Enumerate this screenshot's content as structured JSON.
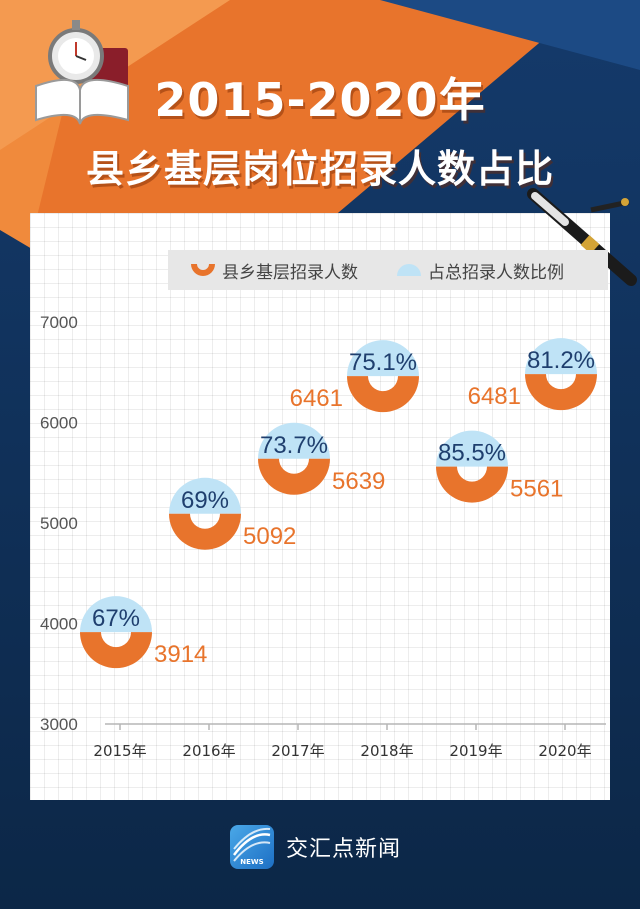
{
  "header": {
    "title_line1": "2015-2020年",
    "title_line2": "县乡基层岗位招录人数占比"
  },
  "legend": {
    "series1_label": "县乡基层招录人数",
    "series2_label": "占总招录人数比例"
  },
  "brand": {
    "name": "交汇点新闻",
    "logo_text": "NEWS"
  },
  "colors": {
    "background": "#0f2f5c",
    "orange": "#e8742c",
    "light_blue": "#bfe3f6",
    "percent_text": "#1f3f6e"
  },
  "chart_data": {
    "type": "scatter",
    "title": "2015-2020年 县乡基层岗位招录人数占比",
    "categories": [
      "2015年",
      "2016年",
      "2017年",
      "2018年",
      "2019年",
      "2020年"
    ],
    "series": [
      {
        "name": "县乡基层招录人数",
        "values": [
          3914,
          5092,
          5639,
          6461,
          5561,
          6481
        ]
      },
      {
        "name": "占总招录人数比例",
        "values": [
          "67%",
          "69%",
          "73.7%",
          "75.1%",
          "85.5%",
          "81.2%"
        ]
      }
    ],
    "y_ticks": [
      3000,
      4000,
      5000,
      6000,
      7000
    ],
    "ylim": [
      3000,
      7000
    ],
    "grid": true,
    "legend_position": "top-right"
  }
}
